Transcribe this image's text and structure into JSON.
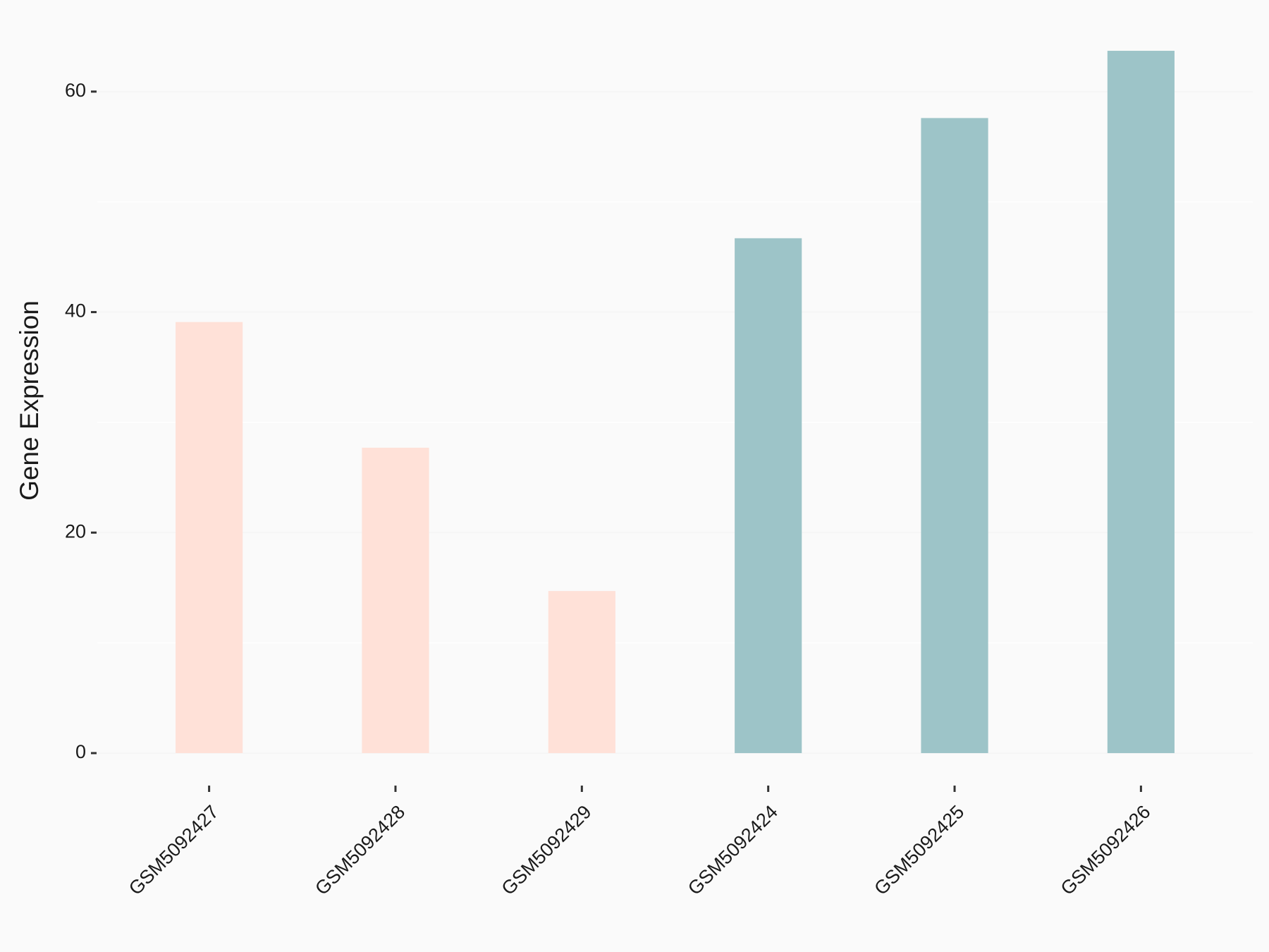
{
  "chart_data": {
    "type": "bar",
    "y_label": "Gene Expression",
    "categories": [
      "GSM5092427",
      "GSM5092428",
      "GSM5092429",
      "GSM5092424",
      "GSM5092425",
      "GSM5092426"
    ],
    "values": [
      39.1,
      27.7,
      14.7,
      46.7,
      57.6,
      63.7
    ],
    "colors": [
      "#ffe1d8",
      "#ffe1d8",
      "#ffe1d8",
      "#9dc4c8",
      "#9dc4c8",
      "#9dc4c8"
    ],
    "ylim": [
      -3.2,
      66.9
    ],
    "yticks": [
      0,
      20,
      40,
      60
    ],
    "minor_grid": [
      10,
      30,
      50
    ],
    "grid": true
  }
}
